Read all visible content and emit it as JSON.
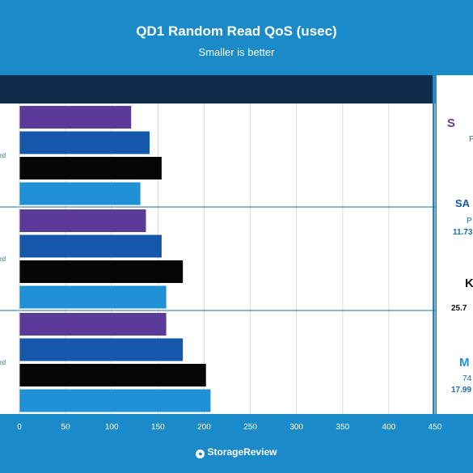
{
  "chart_data": {
    "type": "bar",
    "orientation": "horizontal",
    "title": "QD1 Random Read QoS (usec)",
    "subtitle": "Smaller is better",
    "xlabel": "",
    "ylabel": "",
    "xlim": [
      0,
      450
    ],
    "x_ticks": [
      0,
      50,
      100,
      150,
      200,
      250,
      300,
      350,
      400,
      450
    ],
    "grid": true,
    "groups": [
      {
        "label": "rd",
        "values": [
          121,
          141,
          154,
          131
        ]
      },
      {
        "label": "rd",
        "values": [
          137,
          154,
          177,
          159
        ]
      },
      {
        "label": "rd",
        "values": [
          159,
          177,
          202,
          207
        ]
      }
    ],
    "series_colors": [
      "#5b3a9a",
      "#1557a8",
      "#050505",
      "#1f91d6"
    ]
  },
  "side_panel": {
    "row1_logo": "S",
    "row1_text": "P",
    "row2_logo": "SA",
    "row2_text": "P",
    "row2_value": "11.73",
    "row3_logo": "K",
    "row3_value": "25.7",
    "row4_logo": "M",
    "row4_text": "74",
    "row4_value": "17.99"
  },
  "footer": {
    "brand": "StorageReview"
  },
  "colors": {
    "frame": "#1a8ac8",
    "header_dark": "#0d2d4a",
    "grid": "#d9d9d9"
  }
}
